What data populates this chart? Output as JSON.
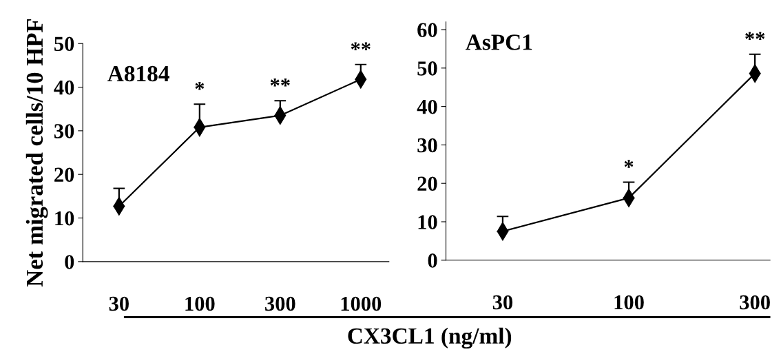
{
  "chart_data": [
    {
      "type": "line",
      "title": "A8184",
      "ylabel": "Net migrated cells/10 HPF",
      "xlabel": "CX3CL1 (ng/ml)",
      "categories": [
        "30",
        "100",
        "300",
        "1000"
      ],
      "series": [
        {
          "color": "#000000",
          "values": [
            12.7,
            30.8,
            33.5,
            41.8
          ],
          "errors": [
            [
              12.7,
              16.8
            ],
            [
              30.8,
              36.1
            ],
            [
              33.5,
              36.9
            ],
            [
              41.8,
              45.2
            ]
          ]
        }
      ],
      "ylim": [
        0,
        50
      ],
      "yticks": [
        0,
        10,
        20,
        30,
        40,
        50
      ],
      "marker": "diamond",
      "line_style": "solid",
      "grid": false,
      "legend": false,
      "annotations": [
        {
          "text": "*",
          "x": "100",
          "y": 36.1
        },
        {
          "text": "**",
          "x": "300",
          "y": 36.9
        },
        {
          "text": "**",
          "x": "1000",
          "y": 45.2
        }
      ]
    },
    {
      "type": "line",
      "title": "AsPC1",
      "categories": [
        "30",
        "100",
        "300"
      ],
      "series": [
        {
          "color": "#000000",
          "values": [
            7.5,
            16.2,
            48.6
          ],
          "errors": [
            [
              7.5,
              11.4
            ],
            [
              16.2,
              20.3
            ],
            [
              48.6,
              53.6
            ]
          ]
        }
      ],
      "ylim": [
        0,
        62
      ],
      "yticks": [
        0,
        10,
        20,
        30,
        40,
        50,
        60
      ],
      "marker": "diamond",
      "line_style": "solid",
      "grid": false,
      "legend": false,
      "annotations": [
        {
          "text": "*",
          "x": "100",
          "y": 20.3
        },
        {
          "text": "**",
          "x": "300",
          "y": 53.6
        }
      ]
    }
  ]
}
